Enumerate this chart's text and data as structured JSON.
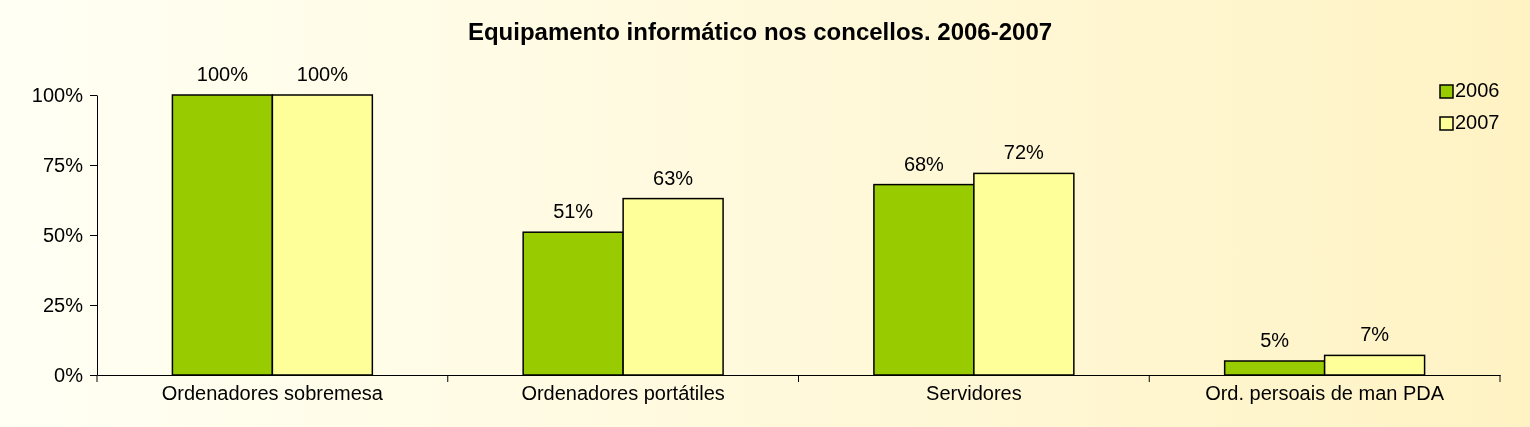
{
  "chart_data": {
    "type": "bar",
    "title": "Equipamento informático nos concellos. 2006-2007",
    "categories": [
      "Ordenadores sobremesa",
      "Ordenadores portátiles",
      "Servidores",
      "Ord. persoais de man PDA"
    ],
    "series": [
      {
        "name": "2006",
        "color": "#99cc00",
        "values": [
          100,
          51,
          68,
          5
        ],
        "value_labels": [
          "100%",
          "51%",
          "68%",
          "5%"
        ]
      },
      {
        "name": "2007",
        "color": "#ffff99",
        "values": [
          100,
          63,
          72,
          7
        ],
        "value_labels": [
          "100%",
          "63%",
          "72%",
          "7%"
        ]
      }
    ],
    "ylim": [
      0,
      100
    ],
    "yticks": [
      {
        "value": 0,
        "label": "0%"
      },
      {
        "value": 25,
        "label": "25%"
      },
      {
        "value": 50,
        "label": "50%"
      },
      {
        "value": 75,
        "label": "75%"
      },
      {
        "value": 100,
        "label": "100%"
      }
    ],
    "grid": false,
    "legend": "top right"
  }
}
